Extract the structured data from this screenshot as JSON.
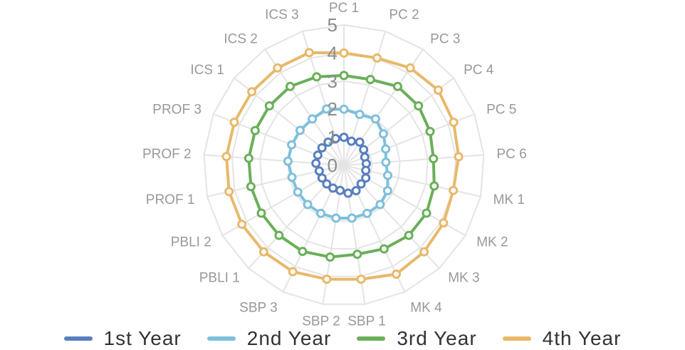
{
  "chart_data": {
    "type": "radar",
    "axes": [
      "PC 1",
      "PC 2",
      "PC 3",
      "PC 4",
      "PC 5",
      "PC 6",
      "MK 1",
      "MK 2",
      "MK 3",
      "MK 4",
      "SBP 1",
      "SBP 2",
      "SBP 3",
      "PBLI 1",
      "PBLI 2",
      "PROF 1",
      "PROF 2",
      "PROF 3",
      "ICS 1",
      "ICS 2",
      "ICS 3"
    ],
    "rlim": [
      0,
      5
    ],
    "ticks": [
      "0",
      "1",
      "2",
      "3",
      "4",
      "5"
    ],
    "grid": true,
    "legend": "bottom",
    "series": [
      {
        "name": "1st Year",
        "color": "#5a7fbf",
        "values": [
          1.0,
          0.9,
          1.0,
          0.9,
          0.8,
          0.8,
          0.8,
          0.9,
          0.9,
          1.0,
          1.0,
          0.9,
          0.9,
          0.9,
          0.9,
          0.9,
          1.0,
          1.0,
          1.0,
          1.0,
          1.0
        ]
      },
      {
        "name": "2nd Year",
        "color": "#7fbfdc",
        "values": [
          2.0,
          1.9,
          2.0,
          1.8,
          1.6,
          1.5,
          1.6,
          1.8,
          1.9,
          1.9,
          1.9,
          1.9,
          1.9,
          1.9,
          1.9,
          1.9,
          2.0,
          2.0,
          2.0,
          2.0,
          2.1
        ]
      },
      {
        "name": "3rd Year",
        "color": "#6aaf5a",
        "values": [
          3.2,
          3.2,
          3.4,
          3.4,
          3.3,
          3.2,
          3.3,
          3.4,
          3.4,
          3.3,
          3.2,
          3.3,
          3.4,
          3.4,
          3.4,
          3.4,
          3.4,
          3.4,
          3.4,
          3.4,
          3.3
        ]
      },
      {
        "name": "4th Year",
        "color": "#e8b86a",
        "values": [
          4.0,
          4.0,
          4.2,
          4.3,
          4.2,
          4.1,
          4.0,
          4.1,
          4.2,
          4.3,
          4.1,
          4.1,
          4.2,
          4.2,
          4.2,
          4.2,
          4.2,
          4.2,
          4.2,
          4.2,
          4.2
        ]
      }
    ]
  }
}
